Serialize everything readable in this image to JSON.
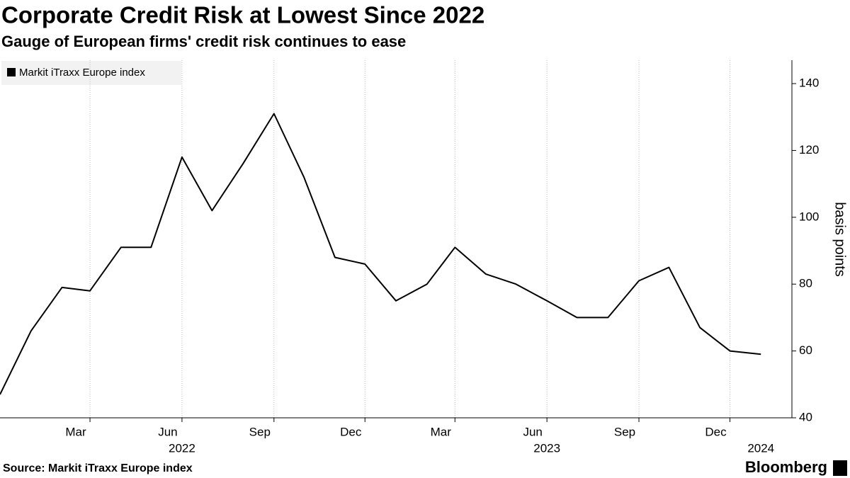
{
  "chart_data": {
    "type": "line",
    "title": "Corporate Credit Risk at Lowest Since 2022",
    "subtitle": "Gauge of European firms' credit risk continues to ease",
    "source": "Source: Markit iTraxx Europe index",
    "brand": "Bloomberg",
    "y_axis_label": "basis points",
    "x": [
      "2021-12",
      "2022-01",
      "2022-02",
      "2022-03",
      "2022-04",
      "2022-05",
      "2022-06",
      "2022-07",
      "2022-08",
      "2022-09",
      "2022-10",
      "2022-11",
      "2022-12",
      "2023-01",
      "2023-02",
      "2023-03",
      "2023-04",
      "2023-05",
      "2023-06",
      "2023-07",
      "2023-08",
      "2023-09",
      "2023-10",
      "2023-11",
      "2023-12",
      "2024-01"
    ],
    "series": [
      {
        "name": "Markit iTraxx Europe index",
        "color": "#000000",
        "values": [
          47,
          66,
          79,
          78,
          91,
          91,
          118,
          102,
          116,
          131,
          112,
          88,
          86,
          75,
          80,
          91,
          83,
          80,
          75,
          70,
          70,
          81,
          85,
          67,
          60,
          59
        ]
      }
    ],
    "xlim": [
      "2021-12",
      "2024-02"
    ],
    "xticks": [
      {
        "value": "2022-03",
        "label": "Mar"
      },
      {
        "value": "2022-06",
        "label": "Jun"
      },
      {
        "value": "2022-09",
        "label": "Sep"
      },
      {
        "value": "2022-12",
        "label": "Dec"
      },
      {
        "value": "2023-03",
        "label": "Mar"
      },
      {
        "value": "2023-06",
        "label": "Jun"
      },
      {
        "value": "2023-09",
        "label": "Sep"
      },
      {
        "value": "2023-12",
        "label": "Dec"
      }
    ],
    "year_labels": [
      {
        "value": "2022-06",
        "label": "2022"
      },
      {
        "value": "2023-06",
        "label": "2023"
      },
      {
        "value": "2024-01",
        "label": "2024"
      }
    ],
    "ylim": [
      40,
      147
    ],
    "yticks": [
      40,
      60,
      80,
      100,
      120,
      140
    ],
    "grid": true,
    "legend": "top-left"
  }
}
